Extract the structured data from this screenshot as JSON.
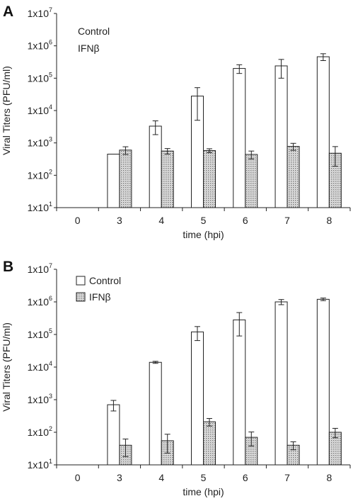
{
  "chart_data": [
    {
      "type": "bar",
      "panel": "A",
      "categories": [
        "0",
        "3",
        "4",
        "5",
        "6",
        "7",
        "8"
      ],
      "xlabel": "time (hpi)",
      "ylabel": "Viral Titers (PFU/ml)",
      "yscale": "log",
      "ylim": [
        10,
        10000000
      ],
      "yticks": [
        {
          "base": "1x10",
          "exp": "1"
        },
        {
          "base": "1x10",
          "exp": "2"
        },
        {
          "base": "1x10",
          "exp": "3"
        },
        {
          "base": "1x10",
          "exp": "4"
        },
        {
          "base": "1x10",
          "exp": "5"
        },
        {
          "base": "1x10",
          "exp": "6"
        },
        {
          "base": "1x10",
          "exp": "7"
        }
      ],
      "legend": {
        "placement": "top-left",
        "swatches": false
      },
      "series": [
        {
          "name": "Control",
          "fill": "#ffffff",
          "values": [
            null,
            450,
            3300,
            28000,
            200000,
            240000,
            460000
          ],
          "errors": [
            null,
            null,
            1500,
            23000,
            60000,
            140000,
            110000
          ]
        },
        {
          "name": "IFNβ",
          "fill": "pattern",
          "values": [
            null,
            600,
            560,
            580,
            440,
            780,
            480
          ],
          "errors": [
            null,
            160,
            110,
            80,
            120,
            190,
            290
          ]
        }
      ]
    },
    {
      "type": "bar",
      "panel": "B",
      "categories": [
        "0",
        "3",
        "4",
        "5",
        "6",
        "7",
        "8"
      ],
      "xlabel": "time (hpi)",
      "ylabel": "Viral Titers (PFU/ml)",
      "yscale": "log",
      "ylim": [
        10,
        10000000
      ],
      "yticks": [
        {
          "base": "1x10",
          "exp": "1"
        },
        {
          "base": "1x10",
          "exp": "2"
        },
        {
          "base": "1x10",
          "exp": "3"
        },
        {
          "base": "1x10",
          "exp": "4"
        },
        {
          "base": "1x10",
          "exp": "5"
        },
        {
          "base": "1x10",
          "exp": "6"
        },
        {
          "base": "1x10",
          "exp": "7"
        }
      ],
      "legend": {
        "placement": "top-left",
        "swatches": true
      },
      "series": [
        {
          "name": "Control",
          "fill": "#ffffff",
          "values": [
            null,
            700,
            14000,
            120000,
            280000,
            1000000,
            1200000
          ],
          "errors": [
            null,
            250,
            1000,
            55000,
            190000,
            180000,
            110000
          ]
        },
        {
          "name": "IFNβ",
          "fill": "pattern",
          "values": [
            null,
            40,
            55,
            210,
            70,
            40,
            100
          ],
          "errors": [
            null,
            22,
            32,
            55,
            32,
            11,
            32
          ]
        }
      ]
    }
  ]
}
